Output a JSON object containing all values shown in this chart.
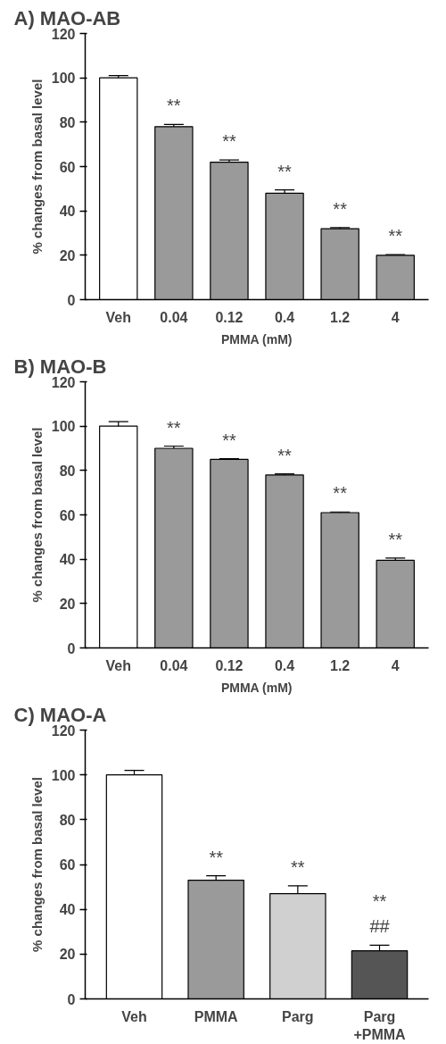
{
  "chart_data": [
    {
      "type": "bar",
      "title": "A) MAO-AB",
      "xlabel": "PMMA (mM)",
      "ylabel": "% changes from basal level",
      "categories": [
        "Veh",
        "0.04",
        "0.12",
        "0.4",
        "1.2",
        "4"
      ],
      "values": [
        100,
        78,
        62,
        48,
        32,
        20
      ],
      "errors": [
        1,
        1,
        1,
        1.5,
        0.5,
        0.3
      ],
      "colors": [
        "#ffffff",
        "#9a9a9a",
        "#9a9a9a",
        "#9a9a9a",
        "#9a9a9a",
        "#9a9a9a"
      ],
      "value_labels": [
        null,
        "**",
        "**",
        "**",
        "**",
        "**"
      ],
      "ylim": [
        0,
        120
      ],
      "yticks": [
        0,
        20,
        40,
        60,
        80,
        100,
        120
      ],
      "grid": false
    },
    {
      "type": "bar",
      "title": "B) MAO-B",
      "xlabel": "PMMA (mM)",
      "ylabel": "% changes from basal level",
      "categories": [
        "Veh",
        "0.04",
        "0.12",
        "0.4",
        "1.2",
        "4"
      ],
      "values": [
        100,
        90,
        85,
        78,
        61,
        39.5
      ],
      "errors": [
        2,
        1,
        0.3,
        0.5,
        0.3,
        1
      ],
      "colors": [
        "#ffffff",
        "#9a9a9a",
        "#9a9a9a",
        "#9a9a9a",
        "#9a9a9a",
        "#9a9a9a"
      ],
      "value_labels": [
        null,
        "**",
        "**",
        "**",
        "**",
        "**"
      ],
      "ylim": [
        0,
        120
      ],
      "yticks": [
        0,
        20,
        40,
        60,
        80,
        100,
        120
      ],
      "grid": false
    },
    {
      "type": "bar",
      "title": "C) MAO-A",
      "ylabel": "% changes from basal level",
      "categories": [
        "Veh",
        "PMMA",
        "Parg",
        "Parg\n+PMMA"
      ],
      "values": [
        100,
        53,
        47,
        21.5
      ],
      "errors": [
        2,
        2,
        3.5,
        2.5
      ],
      "colors": [
        "#ffffff",
        "#9a9a9a",
        "#d0d0d0",
        "#555555"
      ],
      "value_labels": [
        null,
        "**",
        "**",
        "**\n##"
      ],
      "ylim": [
        0,
        120
      ],
      "yticks": [
        0,
        20,
        40,
        60,
        80,
        100,
        120
      ],
      "grid": false
    }
  ]
}
